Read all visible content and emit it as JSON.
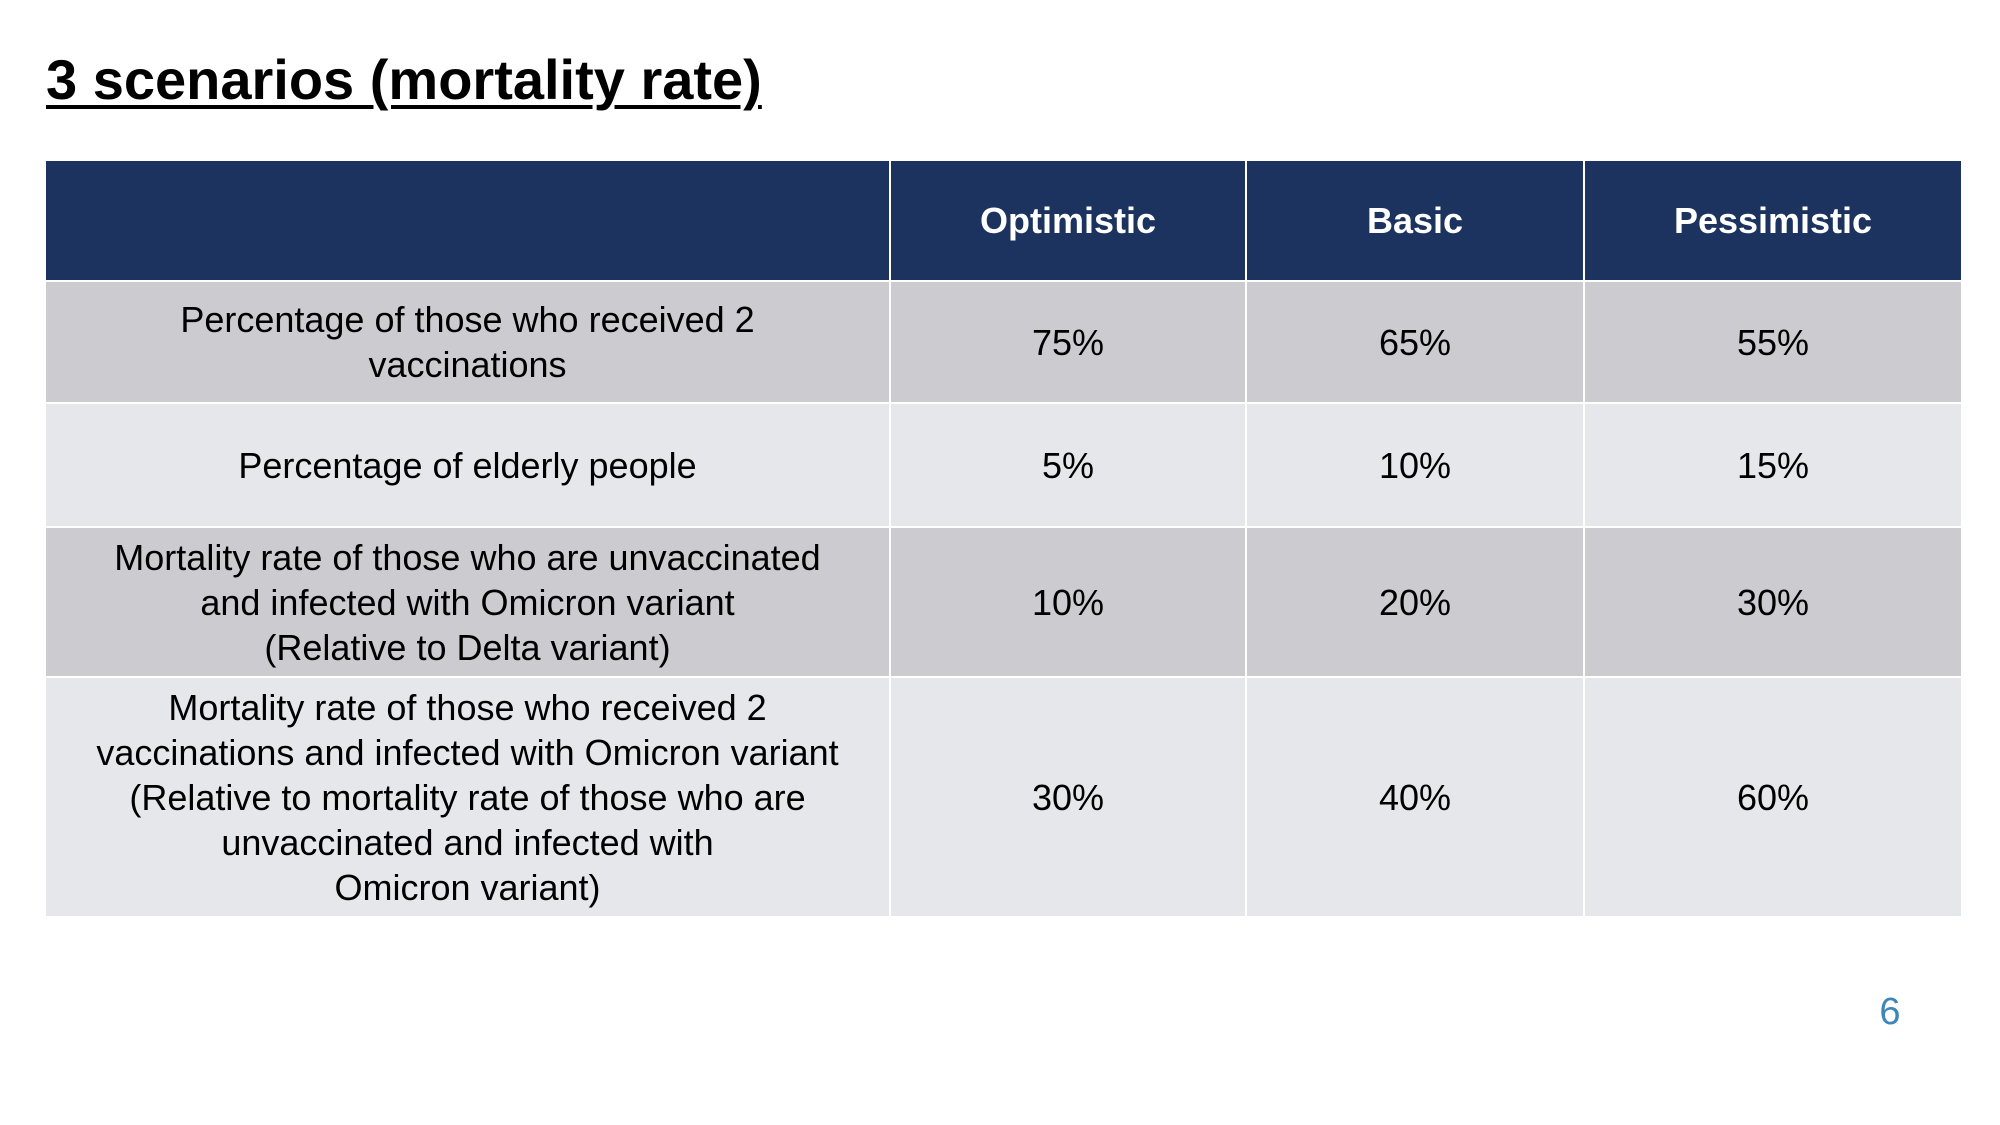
{
  "slide": {
    "title": "3 scenarios (mortality rate)",
    "page_number": "6"
  },
  "table": {
    "headers": [
      "",
      "Optimistic",
      "Basic",
      "Pessimistic"
    ],
    "rows": [
      {
        "label": "Percentage of those who received 2\nvaccinations",
        "values": [
          "75%",
          "65%",
          "55%"
        ]
      },
      {
        "label": "Percentage of elderly people",
        "values": [
          "5%",
          "10%",
          "15%"
        ]
      },
      {
        "label": "Mortality rate of those who are unvaccinated\nand infected with Omicron variant\n(Relative to Delta variant)",
        "values": [
          "10%",
          "20%",
          "30%"
        ]
      },
      {
        "label": "Mortality rate of those who received 2\nvaccinations and infected with Omicron variant\n(Relative to mortality rate of those who are\nunvaccinated and infected with\nOmicron variant)",
        "values": [
          "30%",
          "40%",
          "60%"
        ]
      }
    ]
  },
  "colors": {
    "header_bg": "#1c3360",
    "row_dark": "#cbcbd0",
    "row_light": "#e6e7ea",
    "page_number": "#3d86b9"
  }
}
